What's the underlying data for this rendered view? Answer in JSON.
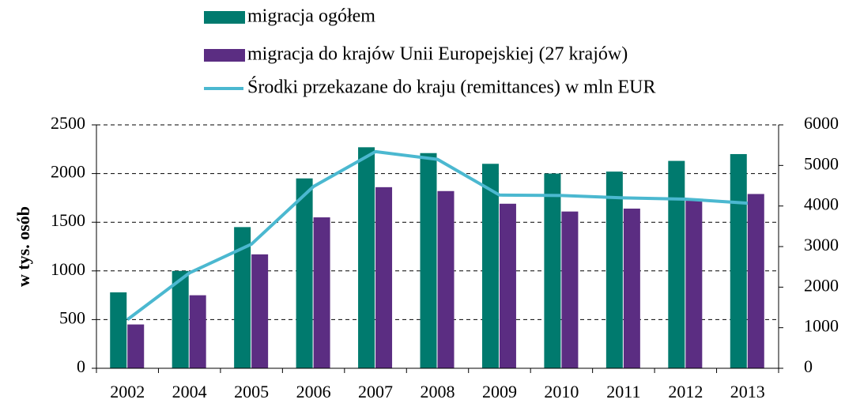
{
  "chart_data": {
    "type": "bar",
    "ylabel": "w tys. osób",
    "categories": [
      "2002",
      "2004",
      "2005",
      "2006",
      "2007",
      "2008",
      "2009",
      "2010",
      "2011",
      "2012",
      "2013"
    ],
    "series": [
      {
        "name": "migracja ogółem",
        "color": "#007a6e",
        "type": "bar",
        "values": [
          780,
          1000,
          1450,
          1950,
          2270,
          2210,
          2100,
          2000,
          2020,
          2130,
          2200
        ]
      },
      {
        "name": "migracja do krajów Unii Europejskiej (27 krajów)",
        "color": "#5b2d82",
        "type": "bar",
        "values": [
          450,
          750,
          1170,
          1550,
          1860,
          1820,
          1690,
          1610,
          1640,
          1720,
          1790
        ]
      },
      {
        "name": "Środki przekazane do kraju (remittances) w mln EUR",
        "color": "#4bb8d0",
        "type": "line",
        "axis": "y2",
        "values": [
          1200,
          2350,
          3060,
          4480,
          5340,
          5150,
          4270,
          4260,
          4200,
          4170,
          4070
        ]
      }
    ],
    "ylim": [
      0,
      2500
    ],
    "yticks": [
      0,
      500,
      1000,
      1500,
      2000,
      2500
    ],
    "y2lim": [
      0,
      6000
    ],
    "y2ticks": [
      0,
      1000,
      2000,
      3000,
      4000,
      5000,
      6000
    ],
    "grid": true
  }
}
